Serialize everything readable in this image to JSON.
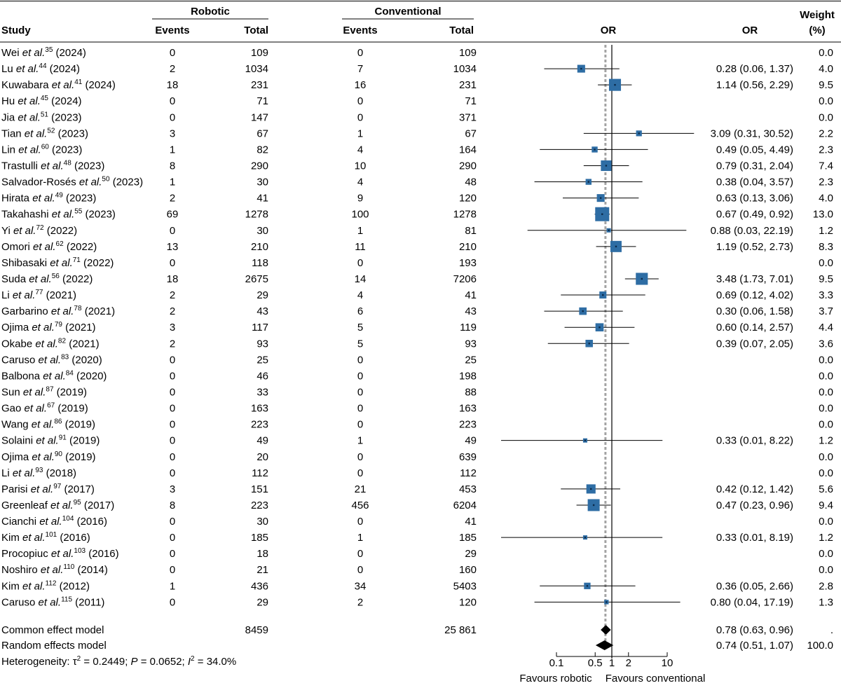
{
  "chart_data": {
    "type": "table",
    "headers": {
      "study": "Study",
      "group1": "Robotic",
      "group2": "Conventional",
      "events": "Events",
      "total": "Total",
      "or_plot": "OR",
      "or_text": "OR",
      "weight_top": "Weight",
      "weight_bottom": "(%)"
    },
    "rows": [
      {
        "author": "Wei ",
        "etal": "et al.",
        "ref": "35",
        "year": " (2024)",
        "r_events": "0",
        "r_total": "109",
        "c_events": "0",
        "c_total": "109",
        "or": null,
        "lower": null,
        "upper": null,
        "or_text": "",
        "weight": "0.0"
      },
      {
        "author": "Lu ",
        "etal": "et al.",
        "ref": "44",
        "year": " (2024)",
        "r_events": "2",
        "r_total": "1034",
        "c_events": "7",
        "c_total": "1034",
        "or": 0.28,
        "lower": 0.06,
        "upper": 1.37,
        "or_text": "0.28 (0.06, 1.37)",
        "weight": "4.0"
      },
      {
        "author": "Kuwabara ",
        "etal": "et al.",
        "ref": "41",
        "year": " (2024)",
        "r_events": "18",
        "r_total": "231",
        "c_events": "16",
        "c_total": "231",
        "or": 1.14,
        "lower": 0.56,
        "upper": 2.29,
        "or_text": "1.14 (0.56, 2.29)",
        "weight": "9.5"
      },
      {
        "author": "Hu ",
        "etal": "et al.",
        "ref": "45",
        "year": " (2024)",
        "r_events": "0",
        "r_total": "71",
        "c_events": "0",
        "c_total": "71",
        "or": null,
        "lower": null,
        "upper": null,
        "or_text": "",
        "weight": "0.0"
      },
      {
        "author": "Jia ",
        "etal": "et al.",
        "ref": "51",
        "year": " (2023)",
        "r_events": "0",
        "r_total": "147",
        "c_events": "0",
        "c_total": "371",
        "or": null,
        "lower": null,
        "upper": null,
        "or_text": "",
        "weight": "0.0"
      },
      {
        "author": "Tian ",
        "etal": "et al.",
        "ref": "52",
        "year": " (2023)",
        "r_events": "3",
        "r_total": "67",
        "c_events": "1",
        "c_total": "67",
        "or": 3.09,
        "lower": 0.31,
        "upper": 30.52,
        "or_text": "3.09 (0.31, 30.52)",
        "weight": "2.2"
      },
      {
        "author": "Lin ",
        "etal": "et al.",
        "ref": "60",
        "year": " (2023)",
        "r_events": "1",
        "r_total": "82",
        "c_events": "4",
        "c_total": "164",
        "or": 0.49,
        "lower": 0.05,
        "upper": 4.49,
        "or_text": "0.49 (0.05, 4.49)",
        "weight": "2.3"
      },
      {
        "author": "Trastulli ",
        "etal": "et al.",
        "ref": "48",
        "year": " (2023)",
        "r_events": "8",
        "r_total": "290",
        "c_events": "10",
        "c_total": "290",
        "or": 0.79,
        "lower": 0.31,
        "upper": 2.04,
        "or_text": "0.79 (0.31, 2.04)",
        "weight": "7.4"
      },
      {
        "author": "Salvador-Rosés ",
        "etal": "et al.",
        "ref": "50",
        "year": " (2023)",
        "r_events": "1",
        "r_total": "30",
        "c_events": "4",
        "c_total": "48",
        "or": 0.38,
        "lower": 0.04,
        "upper": 3.57,
        "or_text": "0.38 (0.04, 3.57)",
        "weight": "2.3"
      },
      {
        "author": "Hirata ",
        "etal": "et al.",
        "ref": "49",
        "year": " (2023)",
        "r_events": "2",
        "r_total": "41",
        "c_events": "9",
        "c_total": "120",
        "or": 0.63,
        "lower": 0.13,
        "upper": 3.06,
        "or_text": "0.63 (0.13, 3.06)",
        "weight": "4.0"
      },
      {
        "author": "Takahashi ",
        "etal": "et al.",
        "ref": "55",
        "year": " (2023)",
        "r_events": "69",
        "r_total": "1278",
        "c_events": "100",
        "c_total": "1278",
        "or": 0.67,
        "lower": 0.49,
        "upper": 0.92,
        "or_text": "0.67 (0.49, 0.92)",
        "weight": "13.0"
      },
      {
        "author": "Yi ",
        "etal": "et al.",
        "ref": "72",
        "year": " (2022)",
        "r_events": "0",
        "r_total": "30",
        "c_events": "1",
        "c_total": "81",
        "or": 0.88,
        "lower": 0.03,
        "upper": 22.19,
        "or_text": "0.88 (0.03, 22.19)",
        "weight": "1.2"
      },
      {
        "author": "Omori ",
        "etal": "et al.",
        "ref": "62",
        "year": " (2022)",
        "r_events": "13",
        "r_total": "210",
        "c_events": "11",
        "c_total": "210",
        "or": 1.19,
        "lower": 0.52,
        "upper": 2.73,
        "or_text": "1.19 (0.52, 2.73)",
        "weight": "8.3"
      },
      {
        "author": "Shibasaki ",
        "etal": "et al.",
        "ref": "71",
        "year": " (2022)",
        "r_events": "0",
        "r_total": "118",
        "c_events": "0",
        "c_total": "193",
        "or": null,
        "lower": null,
        "upper": null,
        "or_text": "",
        "weight": "0.0"
      },
      {
        "author": "Suda ",
        "etal": "et al.",
        "ref": "56",
        "year": " (2022)",
        "r_events": "18",
        "r_total": "2675",
        "c_events": "14",
        "c_total": "7206",
        "or": 3.48,
        "lower": 1.73,
        "upper": 7.01,
        "or_text": "3.48 (1.73, 7.01)",
        "weight": "9.5"
      },
      {
        "author": "Li ",
        "etal": "et al.",
        "ref": "77",
        "year": " (2021)",
        "r_events": "2",
        "r_total": "29",
        "c_events": "4",
        "c_total": "41",
        "or": 0.69,
        "lower": 0.12,
        "upper": 4.02,
        "or_text": "0.69 (0.12, 4.02)",
        "weight": "3.3"
      },
      {
        "author": "Garbarino ",
        "etal": "et al.",
        "ref": "78",
        "year": " (2021)",
        "r_events": "2",
        "r_total": "43",
        "c_events": "6",
        "c_total": "43",
        "or": 0.3,
        "lower": 0.06,
        "upper": 1.58,
        "or_text": "0.30 (0.06, 1.58)",
        "weight": "3.7"
      },
      {
        "author": "Ojima ",
        "etal": "et al.",
        "ref": "79",
        "year": " (2021)",
        "r_events": "3",
        "r_total": "117",
        "c_events": "5",
        "c_total": "119",
        "or": 0.6,
        "lower": 0.14,
        "upper": 2.57,
        "or_text": "0.60 (0.14, 2.57)",
        "weight": "4.4"
      },
      {
        "author": "Okabe ",
        "etal": "et al.",
        "ref": "82",
        "year": " (2021)",
        "r_events": "2",
        "r_total": "93",
        "c_events": "5",
        "c_total": "93",
        "or": 0.39,
        "lower": 0.07,
        "upper": 2.05,
        "or_text": "0.39 (0.07, 2.05)",
        "weight": "3.6"
      },
      {
        "author": "Caruso ",
        "etal": "et al.",
        "ref": "83",
        "year": " (2020)",
        "r_events": "0",
        "r_total": "25",
        "c_events": "0",
        "c_total": "25",
        "or": null,
        "lower": null,
        "upper": null,
        "or_text": "",
        "weight": "0.0"
      },
      {
        "author": "Balbona ",
        "etal": "et al.",
        "ref": "84",
        "year": " (2020)",
        "r_events": "0",
        "r_total": "46",
        "c_events": "0",
        "c_total": "198",
        "or": null,
        "lower": null,
        "upper": null,
        "or_text": "",
        "weight": "0.0"
      },
      {
        "author": "Sun ",
        "etal": "et al.",
        "ref": "87",
        "year": " (2019)",
        "r_events": "0",
        "r_total": "33",
        "c_events": "0",
        "c_total": "88",
        "or": null,
        "lower": null,
        "upper": null,
        "or_text": "",
        "weight": "0.0"
      },
      {
        "author": "Gao ",
        "etal": "et al.",
        "ref": "67",
        "year": " (2019)",
        "r_events": "0",
        "r_total": "163",
        "c_events": "0",
        "c_total": "163",
        "or": null,
        "lower": null,
        "upper": null,
        "or_text": "",
        "weight": "0.0"
      },
      {
        "author": "Wang ",
        "etal": "et al.",
        "ref": "86",
        "year": " (2019)",
        "r_events": "0",
        "r_total": "223",
        "c_events": "0",
        "c_total": "223",
        "or": null,
        "lower": null,
        "upper": null,
        "or_text": "",
        "weight": "0.0"
      },
      {
        "author": "Solaini ",
        "etal": "et al.",
        "ref": "91",
        "year": " (2019)",
        "r_events": "0",
        "r_total": "49",
        "c_events": "1",
        "c_total": "49",
        "or": 0.33,
        "lower": 0.01,
        "upper": 8.22,
        "or_text": "0.33 (0.01, 8.22)",
        "weight": "1.2"
      },
      {
        "author": "Ojima ",
        "etal": "et al.",
        "ref": "90",
        "year": " (2019)",
        "r_events": "0",
        "r_total": "20",
        "c_events": "0",
        "c_total": "639",
        "or": null,
        "lower": null,
        "upper": null,
        "or_text": "",
        "weight": "0.0"
      },
      {
        "author": "Li ",
        "etal": "et al.",
        "ref": "93",
        "year": " (2018)",
        "r_events": "0",
        "r_total": "112",
        "c_events": "0",
        "c_total": "112",
        "or": null,
        "lower": null,
        "upper": null,
        "or_text": "",
        "weight": "0.0"
      },
      {
        "author": "Parisi ",
        "etal": "et al.",
        "ref": "97",
        "year": " (2017)",
        "r_events": "3",
        "r_total": "151",
        "c_events": "21",
        "c_total": "453",
        "or": 0.42,
        "lower": 0.12,
        "upper": 1.42,
        "or_text": "0.42 (0.12, 1.42)",
        "weight": "5.6"
      },
      {
        "author": "Greenleaf ",
        "etal": "et al.",
        "ref": "95",
        "year": " (2017)",
        "r_events": "8",
        "r_total": "223",
        "c_events": "456",
        "c_total": "6204",
        "or": 0.47,
        "lower": 0.23,
        "upper": 0.96,
        "or_text": "0.47 (0.23, 0.96)",
        "weight": "9.4"
      },
      {
        "author": "Cianchi ",
        "etal": "et al.",
        "ref": "104",
        "year": " (2016)",
        "r_events": "0",
        "r_total": "30",
        "c_events": "0",
        "c_total": "41",
        "or": null,
        "lower": null,
        "upper": null,
        "or_text": "",
        "weight": "0.0"
      },
      {
        "author": "Kim ",
        "etal": "et al.",
        "ref": "101",
        "year": " (2016)",
        "r_events": "0",
        "r_total": "185",
        "c_events": "1",
        "c_total": "185",
        "or": 0.33,
        "lower": 0.01,
        "upper": 8.19,
        "or_text": "0.33 (0.01, 8.19)",
        "weight": "1.2"
      },
      {
        "author": "Procopiuc ",
        "etal": "et al.",
        "ref": "103",
        "year": " (2016)",
        "r_events": "0",
        "r_total": "18",
        "c_events": "0",
        "c_total": "29",
        "or": null,
        "lower": null,
        "upper": null,
        "or_text": "",
        "weight": "0.0"
      },
      {
        "author": "Noshiro ",
        "etal": "et al.",
        "ref": "110",
        "year": " (2014)",
        "r_events": "0",
        "r_total": "21",
        "c_events": "0",
        "c_total": "160",
        "or": null,
        "lower": null,
        "upper": null,
        "or_text": "",
        "weight": "0.0"
      },
      {
        "author": "Kim ",
        "etal": "et al.",
        "ref": "112",
        "year": " (2012)",
        "r_events": "1",
        "r_total": "436",
        "c_events": "34",
        "c_total": "5403",
        "or": 0.36,
        "lower": 0.05,
        "upper": 2.66,
        "or_text": "0.36 (0.05, 2.66)",
        "weight": "2.8"
      },
      {
        "author": "Caruso ",
        "etal": "et al.",
        "ref": "115",
        "year": " (2011)",
        "r_events": "0",
        "r_total": "29",
        "c_events": "2",
        "c_total": "120",
        "or": 0.8,
        "lower": 0.04,
        "upper": 17.19,
        "or_text": "0.80 (0.04, 17.19)",
        "weight": "1.3"
      }
    ],
    "summary": [
      {
        "label": "Common effect model",
        "r_total": "8459",
        "c_total": "25 861",
        "or": 0.78,
        "lower": 0.63,
        "upper": 0.96,
        "or_text": "0.78 (0.63, 0.96)",
        "weight": "."
      },
      {
        "label": "Random effects model",
        "r_total": "",
        "c_total": "",
        "or": 0.74,
        "lower": 0.51,
        "upper": 1.07,
        "or_text": "0.74 (0.51, 1.07)",
        "weight": "100.0"
      }
    ],
    "heterogeneity": {
      "prefix": "Heterogeneity: ",
      "tau_sym": "τ",
      "tau_exp": "2",
      "tau_val": " = 0.2449; ",
      "p_sym": "P",
      "p_val": " = 0.0652; ",
      "i_sym": "I",
      "i_exp": "2",
      "i_val": " = 34.0%"
    },
    "x_scale": "log",
    "x_ticks": [
      0.1,
      0.5,
      1,
      2,
      10
    ],
    "x_tick_labels": [
      "0.1",
      "0.5",
      "1",
      "2",
      "10"
    ],
    "xlim": [
      0.1,
      10
    ],
    "reference_line": 1,
    "favours_left": "Favours robotic",
    "favours_right": "Favours conventional",
    "colors": {
      "square": "#2e6da4",
      "diamond": "#000000",
      "lines": "#000000"
    }
  }
}
